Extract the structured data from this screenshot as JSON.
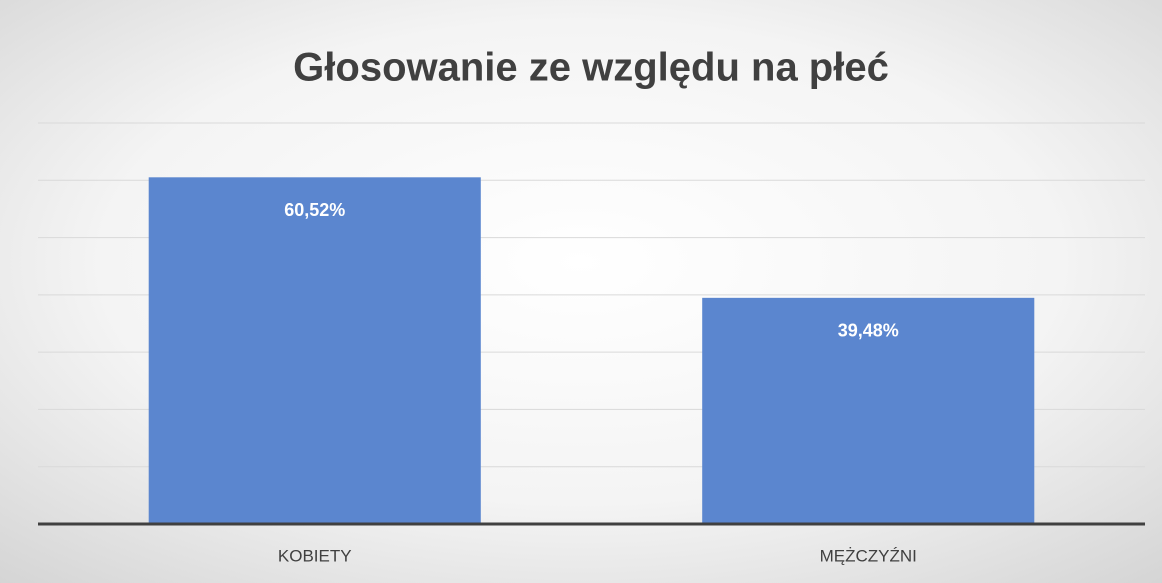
{
  "chart_data": {
    "type": "bar",
    "title": "Głosowanie ze względu na płeć",
    "categories": [
      "KOBIETY",
      "MĘŻCZYŹNI"
    ],
    "values": [
      60.52,
      39.48
    ],
    "value_labels": [
      "60,52%",
      "39,48%"
    ],
    "color": "#5b86cf",
    "ylim": [
      0,
      70
    ],
    "yticks": [
      0,
      10,
      20,
      30,
      40,
      50,
      60,
      70
    ],
    "grid": true
  }
}
